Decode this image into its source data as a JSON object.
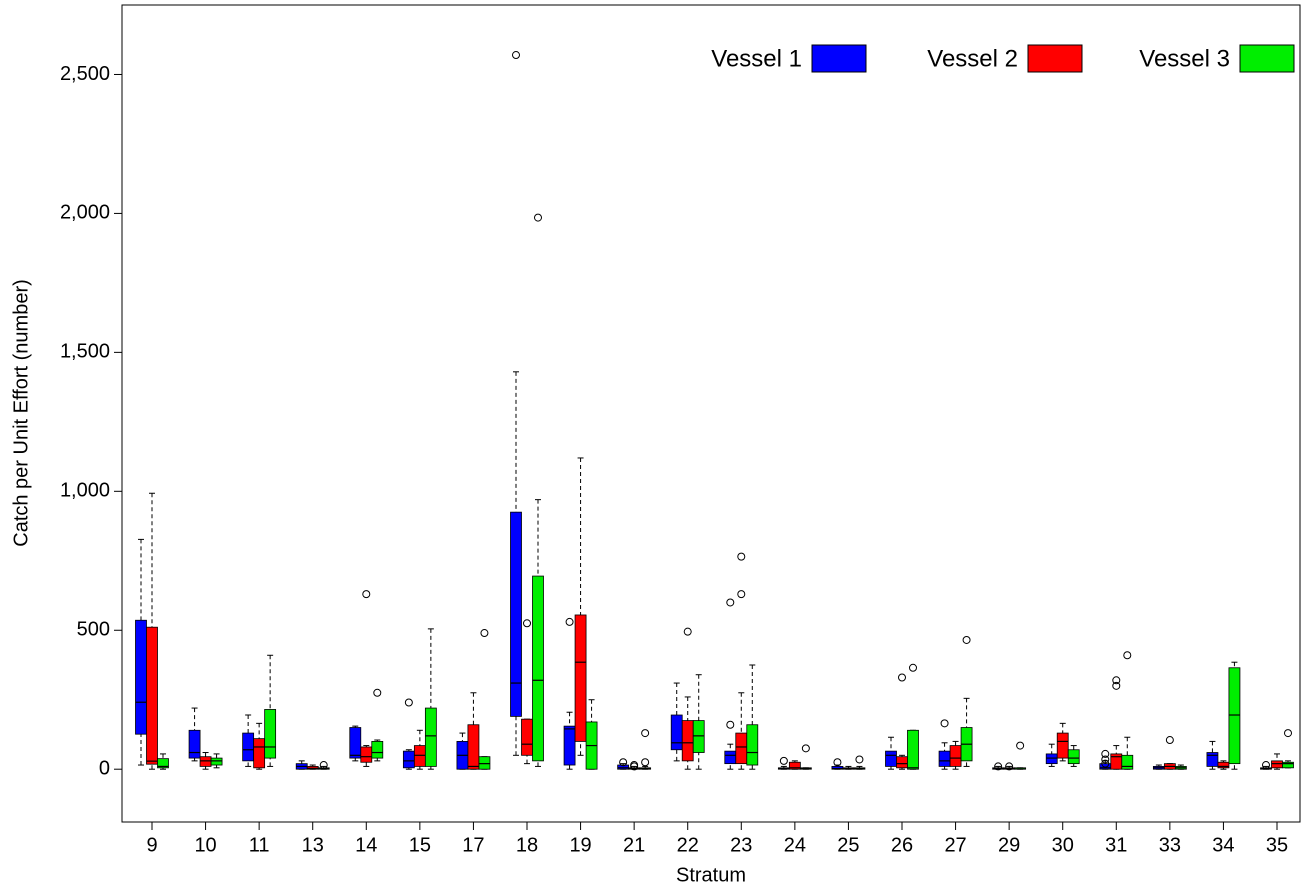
{
  "chart_data": {
    "type": "boxplot",
    "x_label": "Stratum",
    "y_label": "Catch per Unit Effort (number)",
    "categories": [
      "9",
      "10",
      "11",
      "13",
      "14",
      "15",
      "17",
      "18",
      "19",
      "21",
      "22",
      "23",
      "24",
      "25",
      "26",
      "27",
      "29",
      "30",
      "31",
      "33",
      "34",
      "35"
    ],
    "ylim": [
      -190,
      2750
    ],
    "yticks": [
      0,
      500,
      {
        "value": 1000,
        "label": "1,000"
      },
      {
        "value": 1500,
        "label": "1,500"
      },
      {
        "value": 2000,
        "label": "2,000"
      },
      {
        "value": 2500,
        "label": "2,500"
      }
    ],
    "legend_position": "top-right",
    "series": [
      {
        "name": "Vessel 1",
        "color": "#0000ff",
        "values": [
          [
            15,
            126,
            241,
            536,
            827
          ],
          [
            30,
            40,
            60,
            140,
            220
          ],
          [
            10,
            30,
            70,
            130,
            195
          ],
          [
            0,
            0,
            10,
            20,
            30
          ],
          [
            30,
            40,
            50,
            150,
            155
          ],
          [
            0,
            5,
            30,
            65,
            70
          ],
          [
            0,
            0,
            50,
            100,
            130
          ],
          [
            50,
            190,
            310,
            925,
            1430
          ],
          [
            0,
            15,
            145,
            155,
            205
          ],
          [
            0,
            0,
            5,
            15,
            20
          ],
          [
            30,
            70,
            95,
            195,
            310
          ],
          [
            0,
            20,
            50,
            65,
            90
          ],
          [
            0,
            0,
            2,
            5,
            10
          ],
          [
            0,
            0,
            2,
            10,
            15
          ],
          [
            0,
            10,
            50,
            65,
            115
          ],
          [
            0,
            10,
            30,
            65,
            95
          ],
          [
            0,
            0,
            2,
            5,
            10
          ],
          [
            10,
            20,
            40,
            55,
            90
          ],
          [
            0,
            0,
            5,
            20,
            30
          ],
          [
            0,
            0,
            5,
            10,
            15
          ],
          [
            0,
            10,
            50,
            60,
            100
          ],
          [
            0,
            0,
            2,
            5,
            10
          ]
        ],
        "outliers": [
          [],
          [],
          [],
          [],
          [],
          [
            240
          ],
          [],
          [
            2570
          ],
          [
            530
          ],
          [
            25
          ],
          [],
          [
            160,
            600
          ],
          [
            30
          ],
          [
            25
          ],
          [],
          [
            165
          ],
          [
            10
          ],
          [],
          [
            20,
            35,
            55
          ],
          [],
          [],
          [
            15
          ]
        ]
      },
      {
        "name": "Vessel 2",
        "color": "#ff0000",
        "values": [
          [
            0,
            18,
            29,
            511,
            993
          ],
          [
            0,
            10,
            30,
            45,
            60
          ],
          [
            0,
            5,
            80,
            110,
            165
          ],
          [
            0,
            0,
            3,
            10,
            15
          ],
          [
            10,
            25,
            45,
            80,
            85
          ],
          [
            0,
            10,
            50,
            85,
            140
          ],
          [
            0,
            0,
            10,
            160,
            275
          ],
          [
            20,
            50,
            90,
            180,
            180
          ],
          [
            50,
            100,
            385,
            555,
            1120
          ],
          [
            0,
            0,
            2,
            5,
            10
          ],
          [
            0,
            30,
            95,
            175,
            260
          ],
          [
            0,
            20,
            80,
            130,
            275
          ],
          [
            0,
            0,
            5,
            25,
            30
          ],
          [
            0,
            0,
            2,
            5,
            10
          ],
          [
            0,
            5,
            20,
            45,
            50
          ],
          [
            0,
            10,
            40,
            85,
            100
          ],
          [
            0,
            0,
            2,
            5,
            10
          ],
          [
            30,
            40,
            100,
            130,
            165
          ],
          [
            0,
            0,
            45,
            55,
            85
          ],
          [
            0,
            0,
            10,
            20,
            20
          ],
          [
            0,
            5,
            10,
            25,
            30
          ],
          [
            0,
            5,
            20,
            30,
            55
          ]
        ],
        "outliers": [
          [],
          [],
          [],
          [],
          [
            630
          ],
          [],
          [],
          [
            525
          ],
          [],
          [
            15,
            10
          ],
          [
            495
          ],
          [
            630,
            765
          ],
          [],
          [],
          [
            330
          ],
          [],
          [
            10
          ],
          [],
          [
            300,
            320
          ],
          [
            105
          ],
          [],
          []
        ]
      },
      {
        "name": "Vessel 3",
        "color": "#00ee00",
        "values": [
          [
            0,
            5,
            10,
            38,
            55
          ],
          [
            5,
            15,
            30,
            40,
            55
          ],
          [
            10,
            40,
            80,
            215,
            410
          ],
          [
            0,
            0,
            2,
            5,
            10
          ],
          [
            30,
            40,
            60,
            100,
            105
          ],
          [
            0,
            10,
            120,
            220,
            505
          ],
          [
            0,
            0,
            20,
            45,
            45
          ],
          [
            10,
            30,
            320,
            695,
            970
          ],
          [
            0,
            0,
            85,
            170,
            250
          ],
          [
            0,
            0,
            2,
            5,
            10
          ],
          [
            0,
            60,
            120,
            175,
            340
          ],
          [
            0,
            15,
            60,
            160,
            375
          ],
          [
            0,
            0,
            2,
            5,
            5
          ],
          [
            0,
            0,
            2,
            5,
            10
          ],
          [
            0,
            0,
            5,
            140,
            140
          ],
          [
            10,
            30,
            90,
            150,
            255
          ],
          [
            0,
            0,
            1,
            5,
            5
          ],
          [
            10,
            20,
            40,
            70,
            85
          ],
          [
            0,
            0,
            10,
            50,
            115
          ],
          [
            0,
            0,
            5,
            10,
            15
          ],
          [
            0,
            20,
            195,
            365,
            385
          ],
          [
            5,
            5,
            20,
            25,
            30
          ]
        ],
        "outliers": [
          [],
          [],
          [],
          [
            15
          ],
          [
            275
          ],
          [],
          [
            490
          ],
          [
            1985
          ],
          [],
          [
            25,
            130
          ],
          [],
          [],
          [
            75
          ],
          [
            35
          ],
          [
            365
          ],
          [
            465
          ],
          [
            85
          ],
          [],
          [
            410
          ],
          [],
          [],
          [
            130
          ]
        ]
      }
    ]
  }
}
